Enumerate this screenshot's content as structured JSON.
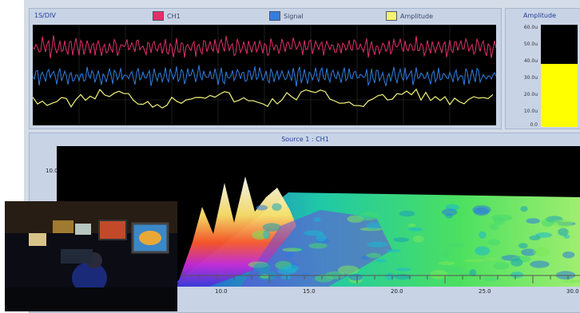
{
  "top_panel": {
    "scale_label": "1S/DIV",
    "legend": [
      {
        "label": "CH1",
        "color": "#e0306a"
      },
      {
        "label": "Signal",
        "color": "#2f7fe0"
      },
      {
        "label": "Amplitude",
        "color": "#f2f27a"
      }
    ]
  },
  "amplitude_meter": {
    "title": "Amplitude",
    "ticks": [
      "60.0u",
      "50.0u",
      "40.0u",
      "30.0u",
      "20.0u",
      "10.0u",
      "0.0"
    ],
    "level_fraction": 0.62,
    "fill_color": "#ffff00"
  },
  "spectrum_panel": {
    "source_label": "Source 1 : CH1",
    "y_axis_label": "10.0u",
    "x_ticks": [
      "10.0",
      "15.0",
      "20.0",
      "25.0",
      "30.0"
    ]
  },
  "icons": {
    "photo_inset": "control-room-photo"
  }
}
